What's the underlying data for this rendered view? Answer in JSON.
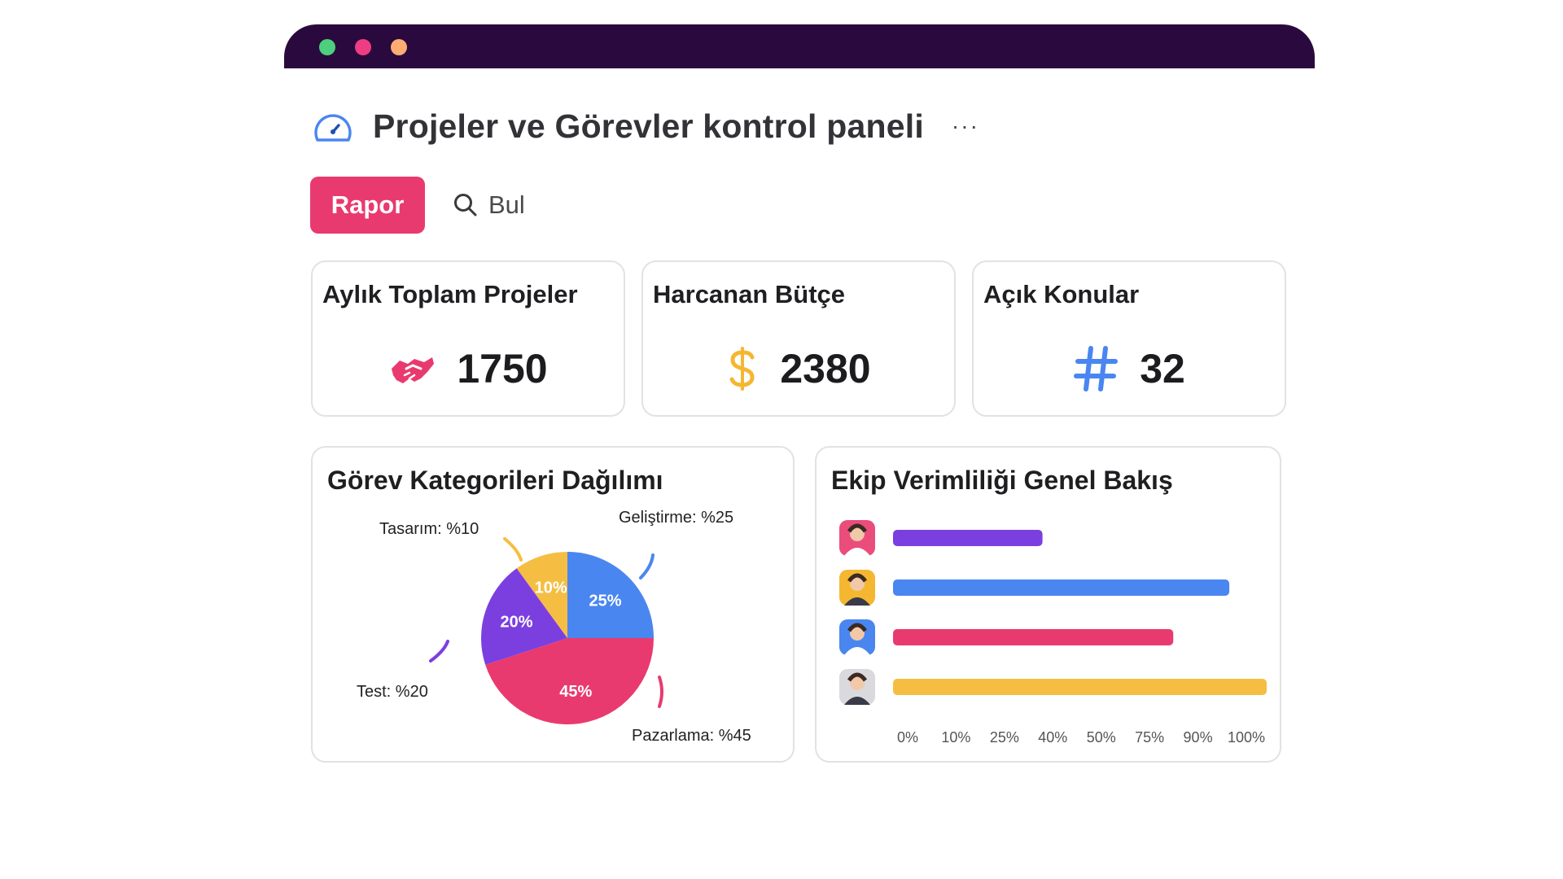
{
  "window": {
    "title_dots": [
      "green",
      "red",
      "orange"
    ],
    "colors": {
      "titlebar": "#2a0a3e",
      "green": "#4cd07d",
      "red": "#ee3d82",
      "orange": "#ffac73"
    }
  },
  "header": {
    "icon": "gauge-icon",
    "title": "Projeler ve Görevler kontrol paneli",
    "more_label": "···"
  },
  "toolbar": {
    "report_label": "Rapor",
    "search_label": "Bul",
    "accent": "#e93a6f"
  },
  "kpis": [
    {
      "title": "Aylık Toplam Projeler",
      "icon": "handshake-icon",
      "value": "1750",
      "color": "#e93a6f"
    },
    {
      "title": "Harcanan Bütçe",
      "icon": "dollar-icon",
      "value": "2380",
      "color": "#f5b731"
    },
    {
      "title": "Açık Konular",
      "icon": "hash-icon",
      "value": "32",
      "color": "#4a86f0"
    }
  ],
  "chart_data": [
    {
      "type": "pie",
      "title": "Görev Kategorileri Dağılımı",
      "slices": [
        {
          "label": "Geliştirme: %25",
          "pct_label": "25%",
          "value": 25,
          "color": "#4a86f0"
        },
        {
          "label": "Pazarlama: %45",
          "pct_label": "45%",
          "value": 45,
          "color": "#e93a6f"
        },
        {
          "label": "Test: %20",
          "pct_label": "20%",
          "value": 20,
          "color": "#7b3fe0"
        },
        {
          "label": "Tasarım: %10",
          "pct_label": "10%",
          "value": 10,
          "color": "#f5be43"
        }
      ]
    },
    {
      "type": "bar",
      "orientation": "horizontal",
      "title": "Ekip Verimliliği Genel Bakış",
      "x_ticks": [
        "0%",
        "10%",
        "25%",
        "40%",
        "50%",
        "75%",
        "90%",
        "100%"
      ],
      "x_tick_values": [
        0,
        10,
        25,
        40,
        50,
        75,
        90,
        100
      ],
      "bars": [
        {
          "avatar": "avatar-woman-icon",
          "value": 40,
          "color": "#7b3fe0",
          "avatar_bg": "#ea4d7c"
        },
        {
          "avatar": "avatar-man-beard-icon",
          "value": 90,
          "color": "#4a86f0",
          "avatar_bg": "#f5b731"
        },
        {
          "avatar": "avatar-man-suit-icon",
          "value": 75,
          "color": "#e93a6f",
          "avatar_bg": "#4a86f0"
        },
        {
          "avatar": "avatar-woman-curly-icon",
          "value": 100,
          "color": "#f5be43",
          "avatar_bg": "#d9d9de"
        }
      ]
    }
  ]
}
